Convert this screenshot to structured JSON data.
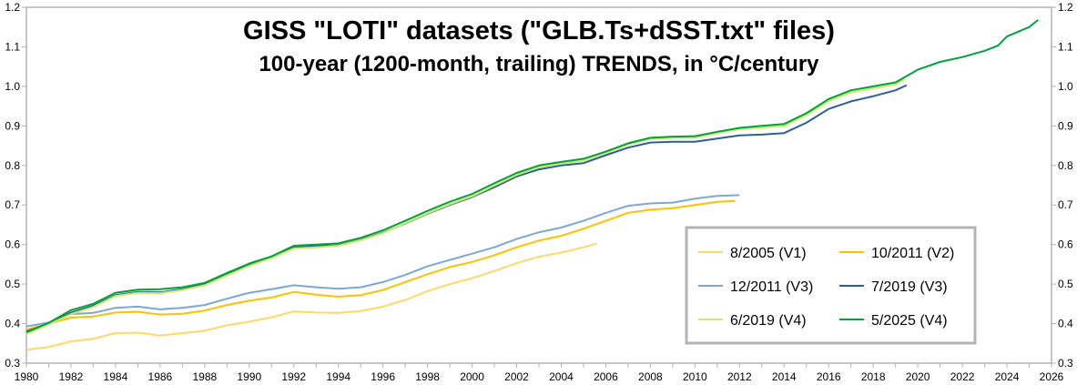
{
  "chart_data": {
    "type": "line",
    "title": "GISS \"LOTI\" datasets (\"GLB.Ts+dSST.txt\" files)",
    "subtitle": "100-year (1200-month, trailing) TRENDS, in °C/century",
    "xlabel": "",
    "ylabel": "",
    "xlim": [
      1980,
      2026
    ],
    "ylim": [
      0.3,
      1.2
    ],
    "x_ticks": [
      "1980",
      "1982",
      "1984",
      "1986",
      "1988",
      "1990",
      "1992",
      "1994",
      "1996",
      "1998",
      "2000",
      "2002",
      "2004",
      "2006",
      "2008",
      "2010",
      "2012",
      "2014",
      "2016",
      "2018",
      "2020",
      "2022",
      "2024",
      "2026"
    ],
    "y_ticks": [
      "0.3",
      "0.4",
      "0.5",
      "0.6",
      "0.7",
      "0.8",
      "0.9",
      "1.0",
      "1.1",
      "1.2"
    ],
    "y_ticks_right": true,
    "grid": false,
    "legend_position": "lower-right",
    "series": [
      {
        "name": "8/2005 (V1)",
        "color": "#ffd966",
        "x": [
          1980,
          1981,
          1982,
          1983,
          1984,
          1985,
          1986,
          1987,
          1988,
          1989,
          1990,
          1991,
          1992,
          1993,
          1994,
          1995,
          1996,
          1997,
          1998,
          1999,
          2000,
          2001,
          2002,
          2003,
          2004,
          2005,
          2005.6
        ],
        "y": [
          0.334,
          0.341,
          0.355,
          0.362,
          0.376,
          0.377,
          0.37,
          0.376,
          0.382,
          0.396,
          0.405,
          0.416,
          0.431,
          0.428,
          0.427,
          0.432,
          0.443,
          0.46,
          0.482,
          0.5,
          0.515,
          0.533,
          0.553,
          0.569,
          0.58,
          0.593,
          0.603
        ]
      },
      {
        "name": "10/2011 (V2)",
        "color": "#ffc000",
        "x": [
          1980,
          1981,
          1982,
          1983,
          1984,
          1985,
          1986,
          1987,
          1988,
          1989,
          1990,
          1991,
          1992,
          1993,
          1994,
          1995,
          1996,
          1997,
          1998,
          1999,
          2000,
          2001,
          2002,
          2003,
          2004,
          2005,
          2006,
          2007,
          2008,
          2009,
          2010,
          2011,
          2011.8
        ],
        "y": [
          0.385,
          0.4,
          0.415,
          0.418,
          0.428,
          0.43,
          0.423,
          0.425,
          0.433,
          0.447,
          0.458,
          0.466,
          0.48,
          0.473,
          0.468,
          0.472,
          0.485,
          0.505,
          0.525,
          0.543,
          0.556,
          0.573,
          0.593,
          0.61,
          0.622,
          0.64,
          0.66,
          0.68,
          0.688,
          0.692,
          0.7,
          0.708,
          0.71
        ]
      },
      {
        "name": "12/2011 (V3)",
        "color": "#7ba7d9",
        "x": [
          1980,
          1981,
          1982,
          1983,
          1984,
          1985,
          1986,
          1987,
          1988,
          1989,
          1990,
          1991,
          1992,
          1993,
          1994,
          1995,
          1996,
          1997,
          1998,
          1999,
          2000,
          2001,
          2002,
          2003,
          2004,
          2005,
          2006,
          2007,
          2008,
          2009,
          2010,
          2011,
          2012
        ],
        "y": [
          0.393,
          0.403,
          0.424,
          0.427,
          0.44,
          0.443,
          0.436,
          0.44,
          0.447,
          0.463,
          0.478,
          0.487,
          0.497,
          0.492,
          0.488,
          0.492,
          0.505,
          0.523,
          0.545,
          0.561,
          0.577,
          0.593,
          0.614,
          0.631,
          0.643,
          0.66,
          0.68,
          0.698,
          0.704,
          0.706,
          0.716,
          0.723,
          0.725
        ]
      },
      {
        "name": "7/2019 (V3)",
        "color": "#2e5d9e",
        "x": [
          1980,
          1981,
          1982,
          1983,
          1984,
          1985,
          1986,
          1987,
          1988,
          1989,
          1990,
          1991,
          1992,
          1993,
          1994,
          1995,
          1996,
          1997,
          1998,
          1999,
          2000,
          2001,
          2002,
          2003,
          2004,
          2005,
          2006,
          2007,
          2008,
          2009,
          2010,
          2011,
          2012,
          2013,
          2014,
          2015,
          2016,
          2017,
          2018,
          2019,
          2019.5
        ],
        "y": [
          0.38,
          0.4,
          0.428,
          0.445,
          0.472,
          0.48,
          0.479,
          0.487,
          0.5,
          0.525,
          0.548,
          0.568,
          0.592,
          0.596,
          0.598,
          0.612,
          0.63,
          0.653,
          0.678,
          0.7,
          0.72,
          0.745,
          0.772,
          0.79,
          0.8,
          0.806,
          0.826,
          0.845,
          0.858,
          0.86,
          0.86,
          0.868,
          0.876,
          0.878,
          0.882,
          0.908,
          0.943,
          0.962,
          0.975,
          0.99,
          1.003
        ]
      },
      {
        "name": "6/2019 (V4)",
        "color": "#c9e96b",
        "x": [
          1980,
          1981,
          1982,
          1983,
          1984,
          1985,
          1986,
          1987,
          1988,
          1989,
          1990,
          1991,
          1992,
          1993,
          1994,
          1995,
          1996,
          1997,
          1998,
          1999,
          2000,
          2001,
          2002,
          2003,
          2004,
          2005,
          2006,
          2007,
          2008,
          2009,
          2010,
          2011,
          2012,
          2013,
          2014,
          2015,
          2016,
          2017,
          2018,
          2019,
          2019.4
        ],
        "y": [
          0.374,
          0.398,
          0.424,
          0.442,
          0.47,
          0.478,
          0.477,
          0.485,
          0.497,
          0.522,
          0.546,
          0.566,
          0.59,
          0.593,
          0.597,
          0.611,
          0.629,
          0.654,
          0.679,
          0.702,
          0.722,
          0.749,
          0.776,
          0.795,
          0.805,
          0.812,
          0.832,
          0.853,
          0.867,
          0.87,
          0.87,
          0.882,
          0.892,
          0.896,
          0.9,
          0.928,
          0.963,
          0.985,
          0.995,
          1.005,
          1.018
        ]
      },
      {
        "name": "5/2025 (V4)",
        "color": "#00a33b",
        "x": [
          1980,
          1981,
          1982,
          1983,
          1984,
          1985,
          1986,
          1987,
          1988,
          1989,
          1990,
          1991,
          1992,
          1993,
          1994,
          1995,
          1996,
          1997,
          1998,
          1999,
          2000,
          2001,
          2002,
          2003,
          2004,
          2005,
          2006,
          2007,
          2008,
          2009,
          2010,
          2011,
          2012,
          2013,
          2014,
          2015,
          2016,
          2017,
          2018,
          2019,
          2020,
          2021,
          2022,
          2023,
          2023.6,
          2024,
          2025,
          2025.4
        ],
        "y": [
          0.378,
          0.402,
          0.434,
          0.45,
          0.478,
          0.486,
          0.487,
          0.492,
          0.503,
          0.528,
          0.552,
          0.57,
          0.597,
          0.6,
          0.603,
          0.617,
          0.636,
          0.66,
          0.685,
          0.708,
          0.728,
          0.755,
          0.781,
          0.8,
          0.809,
          0.817,
          0.835,
          0.856,
          0.87,
          0.873,
          0.874,
          0.885,
          0.895,
          0.9,
          0.905,
          0.932,
          0.968,
          0.99,
          1.0,
          1.01,
          1.042,
          1.062,
          1.074,
          1.09,
          1.103,
          1.126,
          1.15,
          1.168
        ]
      }
    ],
    "legend": [
      "8/2005 (V1)",
      "10/2011 (V2)",
      "12/2011 (V3)",
      "7/2019 (V3)",
      "6/2019 (V4)",
      "5/2025 (V4)"
    ]
  }
}
